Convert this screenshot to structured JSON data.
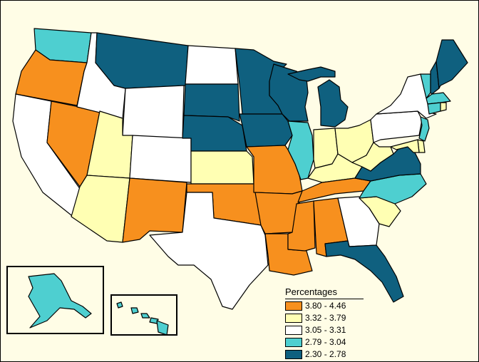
{
  "legend": {
    "title": "Percentages",
    "items": [
      {
        "label": "3.80 - 4.46",
        "color": "#f7901e"
      },
      {
        "label": "3.32 - 3.79",
        "color": "#ffffb3"
      },
      {
        "label": "3.05 - 3.31",
        "color": "#ffffff"
      },
      {
        "label": "2.79 - 3.04",
        "color": "#4ecfd0"
      },
      {
        "label": "2.30 - 2.78",
        "color": "#0f607f"
      }
    ]
  },
  "map": {
    "background": "#fffde6",
    "state_classes": {
      "WA": 3,
      "OR": 0,
      "CA": 2,
      "NV": 0,
      "ID": 2,
      "MT": 4,
      "WY": 2,
      "UT": 1,
      "AZ": 1,
      "CO": 2,
      "NM": 0,
      "ND": 2,
      "SD": 4,
      "NE": 4,
      "KS": 1,
      "OK": 0,
      "TX": 2,
      "MN": 4,
      "IA": 4,
      "MO": 0,
      "AR": 0,
      "LA": 0,
      "WI": 4,
      "IL": 3,
      "MI": 4,
      "IN": 1,
      "OH": 1,
      "KY": 1,
      "TN": 0,
      "MS": 0,
      "AL": 0,
      "GA": 2,
      "FL": 4,
      "SC": 1,
      "NC": 3,
      "VA": 4,
      "WV": 1,
      "PA": 2,
      "NY": 2,
      "ME": 4,
      "NH": 4,
      "VT": 3,
      "MA": 3,
      "CT": 3,
      "RI": 1,
      "NJ": 3,
      "DE": 1,
      "MD": 1,
      "AK": 3,
      "HI": 3
    }
  }
}
